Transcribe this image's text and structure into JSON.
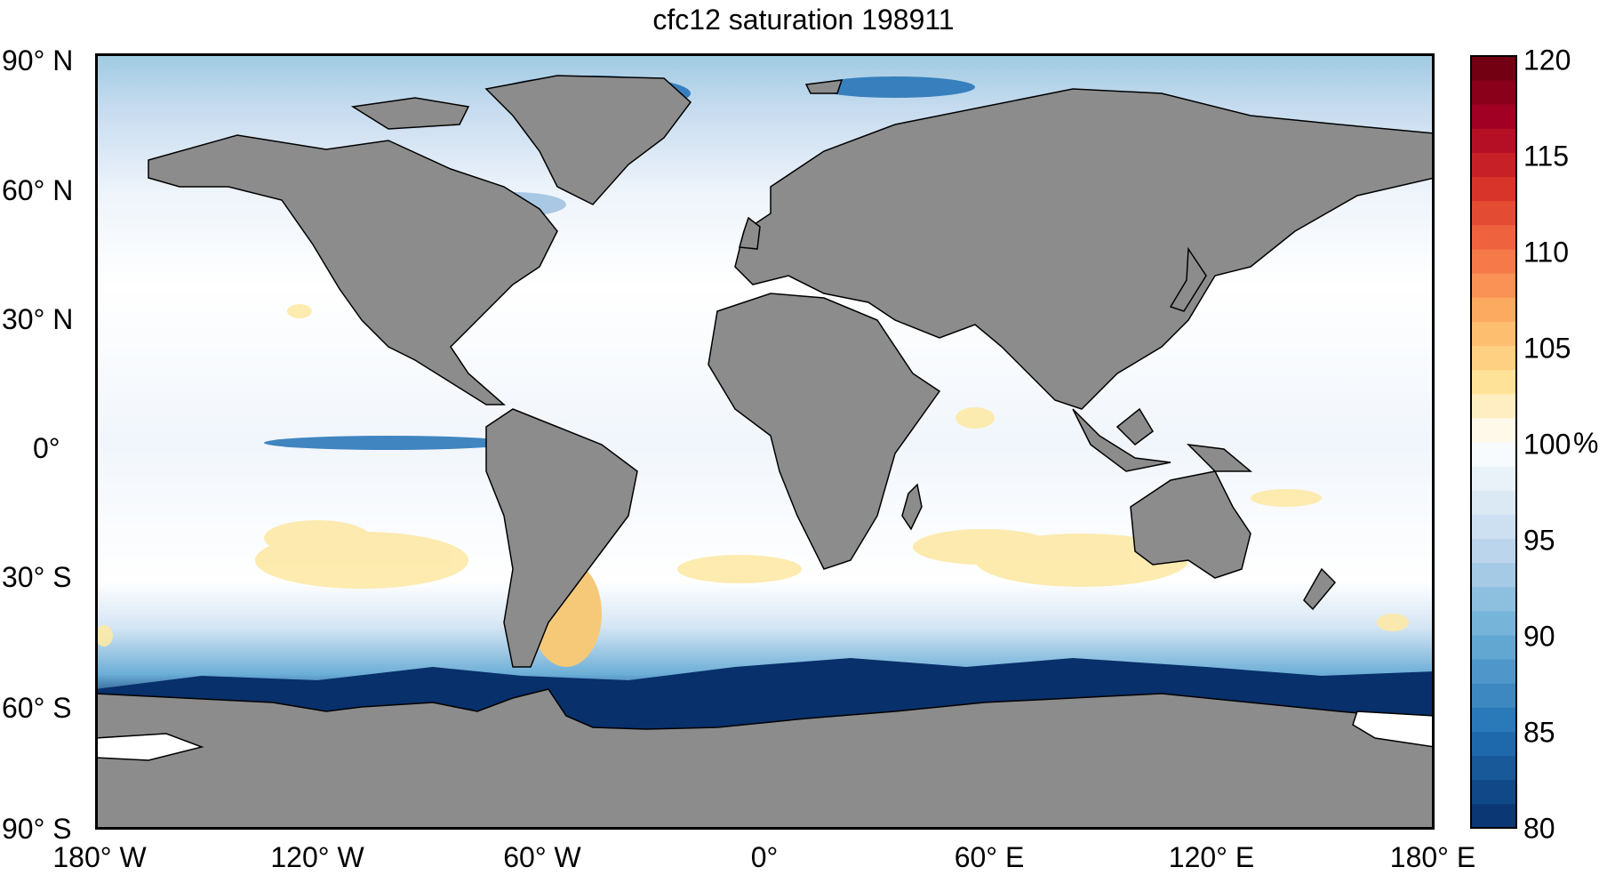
{
  "title": "cfc12 saturation 198911",
  "y_ticks": [
    "90° N",
    "60° N",
    "30° N",
    "0°",
    "30° S",
    "60° S",
    "90° S"
  ],
  "x_ticks": [
    "180° W",
    "120° W",
    "60° W",
    "0°",
    "60° E",
    "120° E",
    "180° E"
  ],
  "colorbar": {
    "ticks": [
      "120",
      "115",
      "110",
      "105",
      "100",
      "95",
      "90",
      "85",
      "80"
    ],
    "unit": "%",
    "range": [
      80,
      120
    ]
  },
  "colors": {
    "land": "#8c8c8c",
    "ocean_low": "#08306b",
    "ocean_mid": "#6baed6",
    "ocean_high": "#b2182b",
    "neutral": "#ffffff"
  }
}
